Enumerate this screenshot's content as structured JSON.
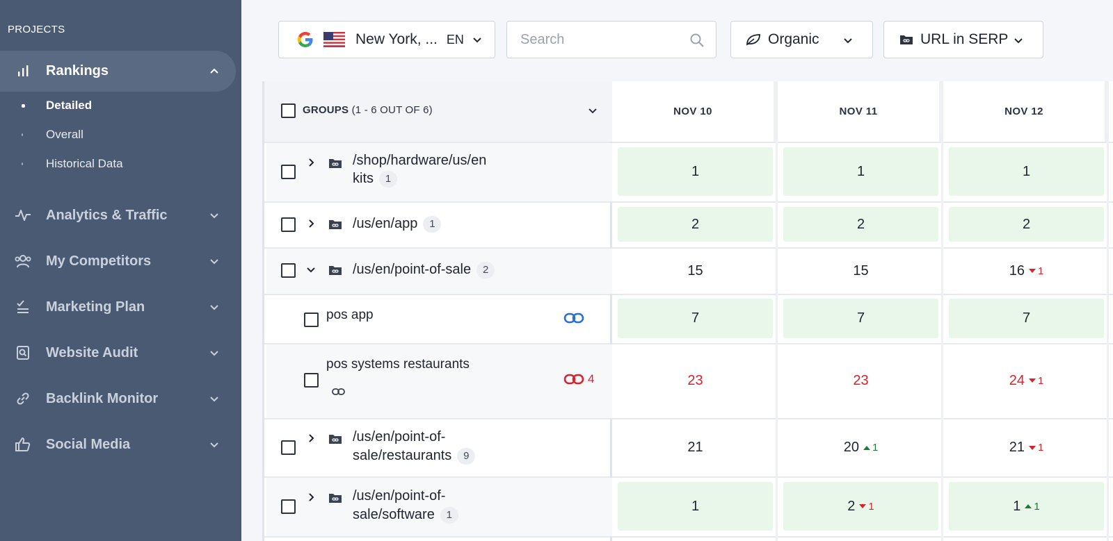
{
  "sidebar": {
    "projects_label": "PROJECTS",
    "rankings": {
      "label": "Rankings",
      "icon": "bar-chart-icon"
    },
    "subitems": [
      "Detailed",
      "Overall",
      "Historical Data"
    ],
    "items": [
      {
        "label": "Analytics & Traffic",
        "icon": "pulse-icon"
      },
      {
        "label": "My Competitors",
        "icon": "users-icon"
      },
      {
        "label": "Marketing Plan",
        "icon": "checklist-icon"
      },
      {
        "label": "Website Audit",
        "icon": "audit-icon"
      },
      {
        "label": "Backlink Monitor",
        "icon": "link-icon"
      },
      {
        "label": "Social Media",
        "icon": "thumbs-up-icon"
      }
    ]
  },
  "toolbar": {
    "location": "New York, ...",
    "language": "EN",
    "search_placeholder": "Search",
    "type": "Organic",
    "mode": "URL in SERP"
  },
  "table": {
    "groups_label": "GROUPS",
    "groups_count": "(1 - 6 OUT OF 6)",
    "dates": [
      "NOV 10",
      "NOV 11",
      "NOV 12"
    ],
    "rows": [
      {
        "line1": "/shop/hardware/us/en",
        "line2": "kits",
        "badge": "1"
      },
      {
        "line1": "/us/en/app",
        "badge": "1"
      },
      {
        "line1": "/us/en/point-of-sale",
        "badge": "2"
      },
      {
        "kw": "pos app"
      },
      {
        "kw": "pos systems restaurants",
        "link_count": "4"
      },
      {
        "line1": "/us/en/point-of-",
        "line2": "sale/restaurants",
        "badge": "9"
      },
      {
        "line1": "/us/en/point-of-",
        "line2": "sale/software",
        "badge": "1"
      }
    ],
    "values": [
      [
        "1",
        "1",
        "1"
      ],
      [
        "2",
        "2",
        "2"
      ],
      [
        "15",
        "15",
        "16"
      ],
      [
        "7",
        "7",
        "7"
      ],
      [
        "23",
        "23",
        "24"
      ],
      [
        "21",
        "20",
        "21"
      ],
      [
        "1",
        "2",
        "1"
      ]
    ],
    "deltas": {
      "r2c2": "1",
      "r4c2": "1",
      "r5c1": "1",
      "r5c2": "1",
      "r6c1": "1",
      "r6c2": "1"
    }
  },
  "colors": {
    "sidebar_bg": "#4a5a72",
    "positive_cell": "#e8f7ea",
    "negative_text": "#d9232a",
    "positive_text": "#1f7a3a",
    "link_blue": "#2a6fd6"
  }
}
